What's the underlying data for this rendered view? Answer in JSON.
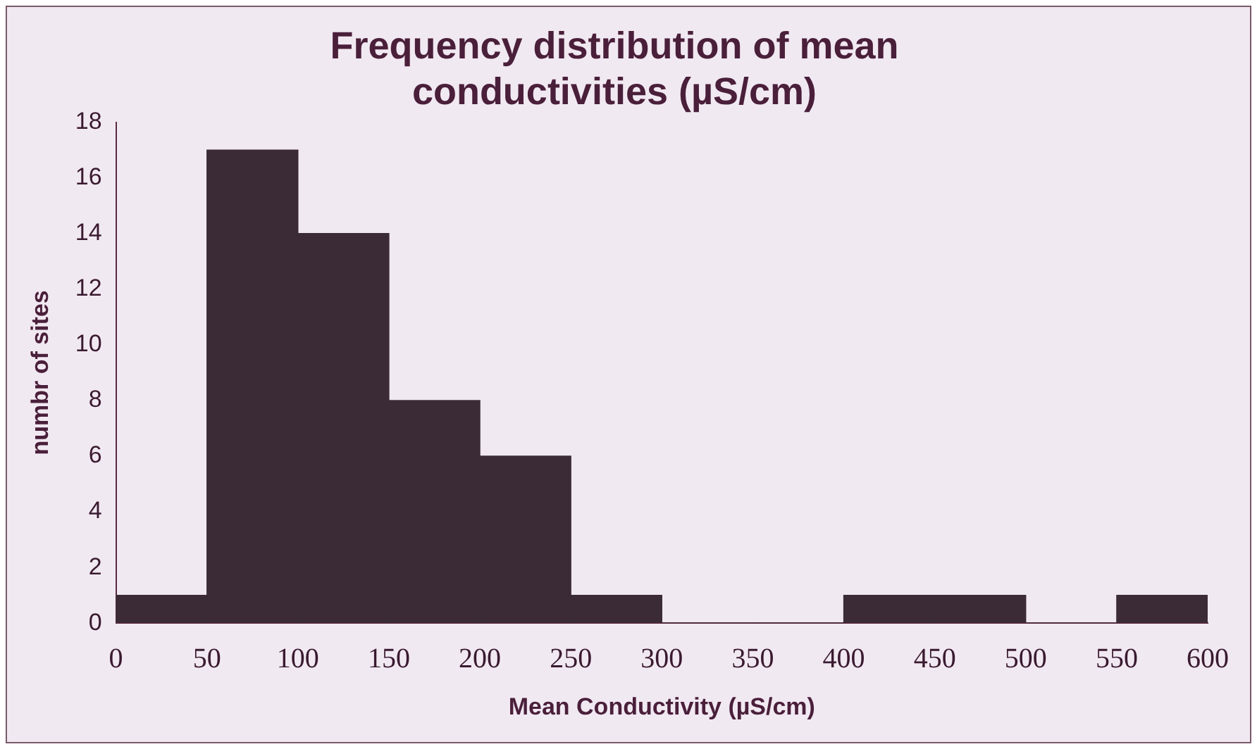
{
  "chart_data": {
    "type": "histogram",
    "title": "Frequency distribution of mean conductivities (µS/cm)",
    "xlabel": "Mean Conductivity (µS/cm)",
    "ylabel": "numbr of sites",
    "bins": [
      0,
      50,
      100,
      150,
      200,
      250,
      300,
      350,
      400,
      450,
      500,
      550,
      600
    ],
    "values": [
      1,
      17,
      14,
      8,
      6,
      1,
      0,
      0,
      1,
      1,
      0,
      1
    ],
    "color": "#3b2b36",
    "xlim": [
      0,
      600
    ],
    "xticks": [
      0,
      50,
      100,
      150,
      200,
      250,
      300,
      350,
      400,
      450,
      500,
      550,
      600
    ],
    "ylim": [
      0,
      18
    ],
    "yticks": [
      0,
      2,
      4,
      6,
      8,
      10,
      12,
      14,
      16,
      18
    ],
    "grid": false,
    "legend": false
  }
}
